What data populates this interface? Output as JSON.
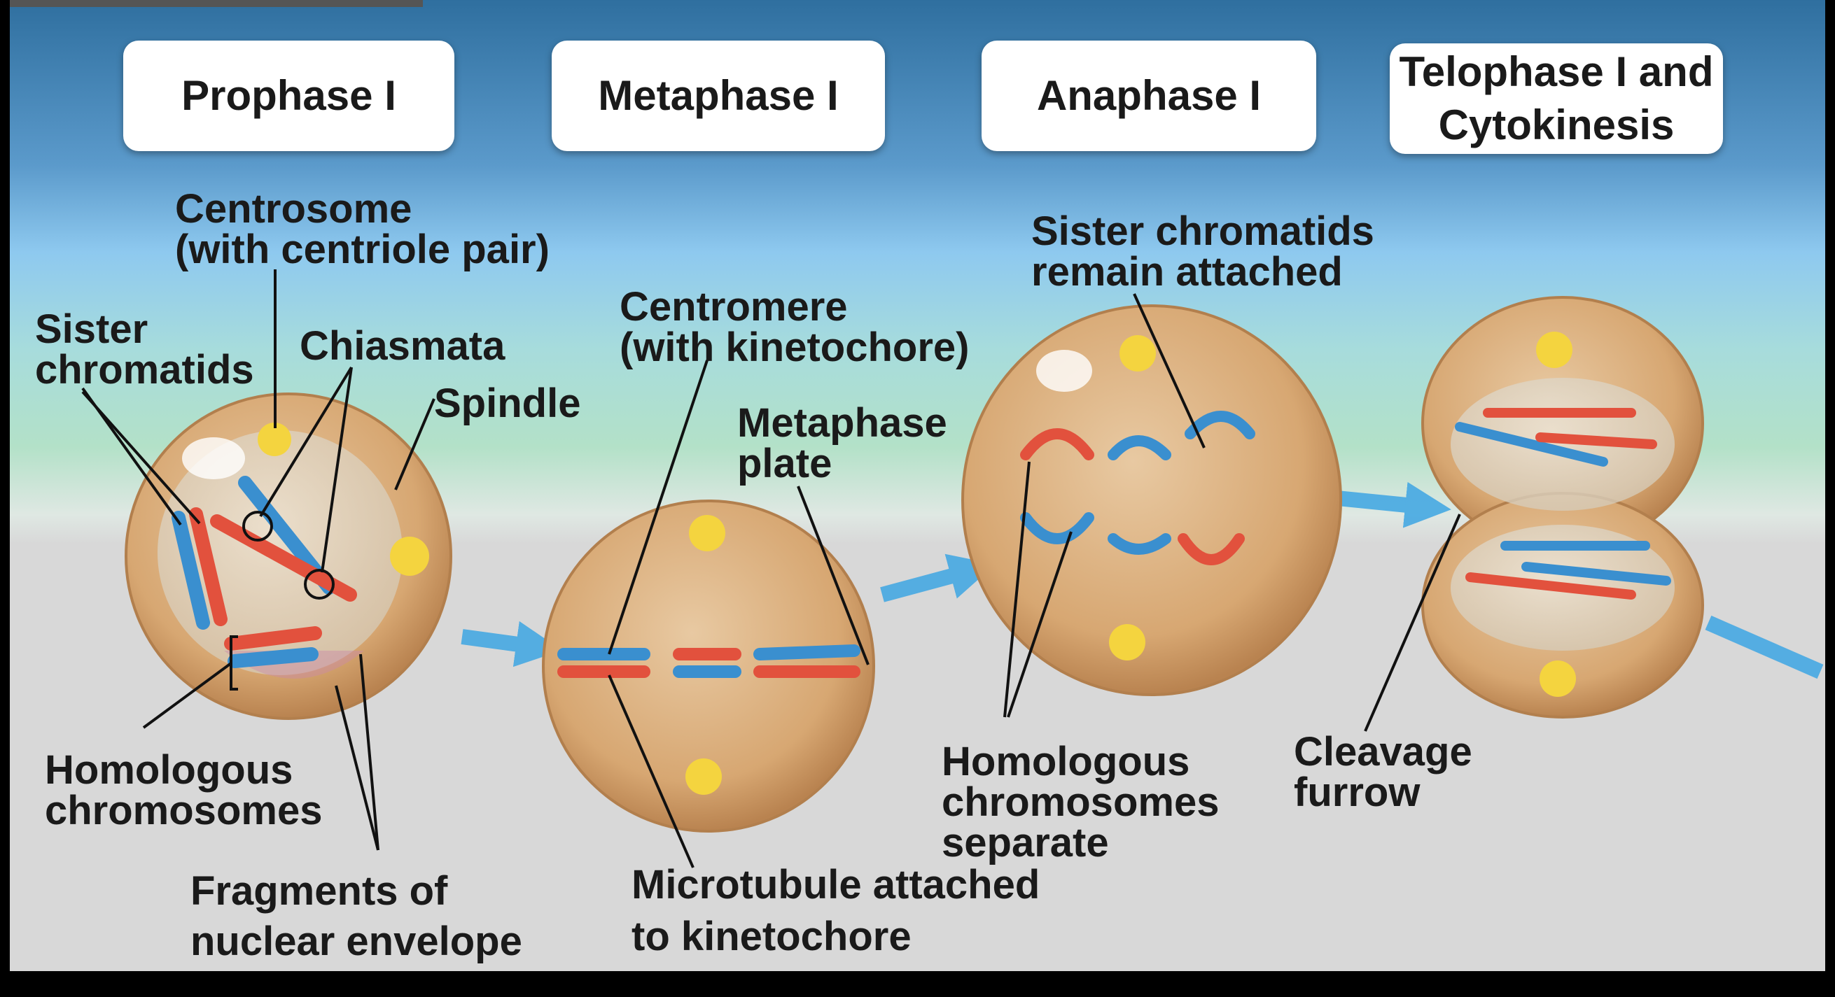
{
  "phases": [
    {
      "name": "Prophase I"
    },
    {
      "name": "Metaphase I"
    },
    {
      "name": "Anaphase I"
    },
    {
      "name": "Telophase I and\nCytokinesis"
    }
  ],
  "labels": {
    "centrosome": "Centrosome\n(with centriole pair)",
    "sister_chromatids": "Sister\nchromatids",
    "chiasmata": "Chiasmata",
    "spindle": "Spindle",
    "homologous_chromosomes": "Homologous\nchromosomes",
    "fragments_nuclear_envelope": "Fragments of\nnuclear envelope",
    "centromere": "Centromere\n(with kinetochore)",
    "metaphase_plate": "Metaphase\nplate",
    "microtubule": "Microtubule attached\nto kinetochore",
    "sister_chromatids_attached": "Sister chromatids\nremain attached",
    "homologous_separate": "Homologous\nchromosomes\nseparate",
    "cleavage_furrow": "Cleavage\nfurrow"
  },
  "colors": {
    "band_top": "#2f6f9f",
    "band_light": "#8ec9ef",
    "band_teal": "#a9d9c4",
    "floor": "#d8d8d8",
    "cell_fill": "#d7a772",
    "cell_edge": "#b27f4d",
    "nucleus": "#e4ddd0",
    "chromatid_red": "#e2513d",
    "chromatid_blue": "#3a8fcf",
    "centrosome": "#f4d43f",
    "arrow": "#46a9e3",
    "leader": "#111111"
  }
}
